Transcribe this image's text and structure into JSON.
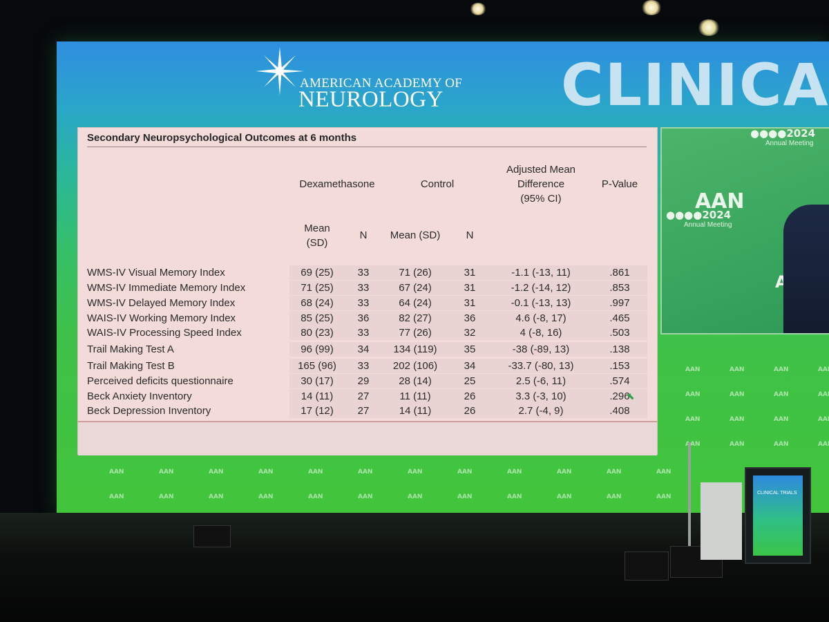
{
  "banner": {
    "org_line1": "AMERICAN ACADEMY OF",
    "org_line2": "NEUROLOGY",
    "heading": "CLINICA"
  },
  "slide": {
    "title": "Secondary Neuropsychological Outcomes at 6 months",
    "group_headers": {
      "dex": "Dexamethasone",
      "control": "Control",
      "amd_line1": "Adjusted Mean",
      "amd_line2": "Difference",
      "amd_line3": "(95% CI)",
      "pvalue": "P-Value"
    },
    "sub_headers": {
      "dex_mean_line1": "Mean",
      "dex_mean_line2": "(SD)",
      "dex_n": "N",
      "ctrl_mean": "Mean (SD)",
      "ctrl_n": "N"
    },
    "rows": [
      {
        "label": "WMS-IV Visual Memory Index",
        "dex_mean": "69 (25)",
        "dex_n": "33",
        "ctrl_mean": "71 (26)",
        "ctrl_n": "31",
        "diff": "-1.1 (-13, 11)",
        "p": ".861"
      },
      {
        "label": "WMS-IV Immediate Memory Index",
        "dex_mean": "71 (25)",
        "dex_n": "33",
        "ctrl_mean": "67 (24)",
        "ctrl_n": "31",
        "diff": "-1.2 (-14, 12)",
        "p": ".853"
      },
      {
        "label": "WMS-IV Delayed Memory Index",
        "dex_mean": "68 (24)",
        "dex_n": "33",
        "ctrl_mean": "64 (24)",
        "ctrl_n": "31",
        "diff": "-0.1 (-13, 13)",
        "p": ".997"
      },
      {
        "label": "WAIS-IV Working Memory Index",
        "dex_mean": "85 (25)",
        "dex_n": "36",
        "ctrl_mean": "82 (27)",
        "ctrl_n": "36",
        "diff": "4.6 (-8, 17)",
        "p": ".465"
      },
      {
        "label": "WAIS-IV Processing Speed Index",
        "dex_mean": "80 (23)",
        "dex_n": "33",
        "ctrl_mean": "77 (26)",
        "ctrl_n": "32",
        "diff": "4 (-8, 16)",
        "p": ".503"
      },
      {
        "label": "Trail Making Test A",
        "dex_mean": "96 (99)",
        "dex_n": "34",
        "ctrl_mean": "134 (119)",
        "ctrl_n": "35",
        "diff": "-38 (-89, 13)",
        "p": ".138"
      },
      {
        "label": "Trail Making Test B",
        "dex_mean": "165 (96)",
        "dex_n": "33",
        "ctrl_mean": "202 (106)",
        "ctrl_n": "34",
        "diff": "-33.7 (-80, 13)",
        "p": ".153"
      },
      {
        "label": "Perceived deficits questionnaire",
        "dex_mean": "30 (17)",
        "dex_n": "29",
        "ctrl_mean": "28 (14)",
        "ctrl_n": "25",
        "diff": "2.5 (-6, 11)",
        "p": ".574"
      },
      {
        "label": "Beck Anxiety Inventory",
        "dex_mean": "14  (11)",
        "dex_n": "27",
        "ctrl_mean": "11 (11)",
        "ctrl_n": "26",
        "diff": "3.3 (-3, 10)",
        "p": ".296"
      },
      {
        "label": "Beck Depression Inventory",
        "dex_mean": "17 (12)",
        "dex_n": "27",
        "ctrl_mean": "14 (11)",
        "ctrl_n": "26",
        "diff": "2.7 (-4, 9)",
        "p": ".408"
      }
    ]
  },
  "video": {
    "mark": "AAN",
    "year": "2024",
    "sub": "Annual Meeting"
  },
  "podium": {
    "label": "CLINICAL TRIALS"
  },
  "colors": {
    "screen_top": "#2f8ee0",
    "screen_bottom": "#42c43b",
    "slide_bg": "#f2dbd9"
  }
}
